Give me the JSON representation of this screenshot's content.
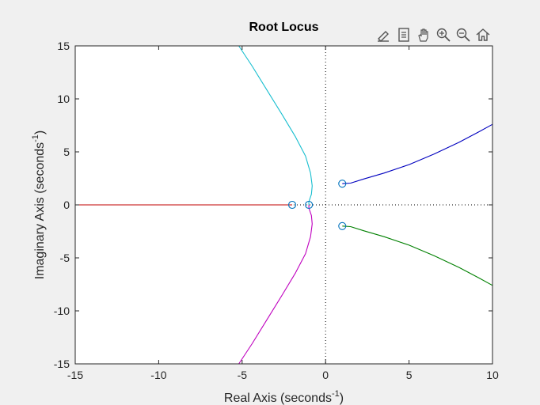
{
  "toolbar": {
    "icons": [
      "edit-brush-icon",
      "legend-insert-icon",
      "pan-hand-icon",
      "zoom-in-icon",
      "zoom-out-icon",
      "restore-view-home-icon"
    ]
  },
  "colors": {
    "background": "#f0f0f0",
    "axes": "#ffffff",
    "branch_red": "#c00000",
    "branch_cyan": "#17becf",
    "branch_magenta": "#bf00bf",
    "branch_blue": "#0000bf",
    "branch_green": "#008000",
    "zero_marker": "#0072bd"
  },
  "chart_data": {
    "type": "line",
    "title": "Root Locus",
    "xlabel": "Real Axis (seconds",
    "ylabel": "Imaginary Axis (seconds",
    "label_superscript": "-1",
    "label_suffix": ")",
    "xlim": [
      -15,
      10
    ],
    "ylim": [
      -15,
      15
    ],
    "xticks": [
      "-15",
      "-10",
      "-5",
      "0",
      "5",
      "10"
    ],
    "yticks": [
      "-15",
      "-10",
      "-5",
      "0",
      "5",
      "10",
      "15"
    ],
    "grid": false,
    "zero_lines": "dotted",
    "zeros": [
      {
        "x": -2,
        "y": 0
      },
      {
        "x": -1,
        "y": 0
      },
      {
        "x": 1,
        "y": 2
      },
      {
        "x": 1,
        "y": -2
      }
    ],
    "series": [
      {
        "color": "red",
        "points": [
          [
            -15,
            0
          ],
          [
            -2,
            0
          ]
        ]
      },
      {
        "color": "cyan",
        "points": [
          [
            -5.2,
            15
          ],
          [
            -4.4,
            13.1
          ],
          [
            -3.5,
            10.8
          ],
          [
            -2.6,
            8.5
          ],
          [
            -1.8,
            6.4
          ],
          [
            -1.2,
            4.6
          ],
          [
            -0.9,
            3.0
          ],
          [
            -0.8,
            1.8
          ],
          [
            -0.85,
            1.0
          ],
          [
            -1.0,
            0.3
          ],
          [
            -1,
            0
          ]
        ]
      },
      {
        "color": "magenta",
        "points": [
          [
            -1,
            0
          ],
          [
            -1.0,
            -0.3
          ],
          [
            -0.85,
            -1.0
          ],
          [
            -0.8,
            -1.8
          ],
          [
            -0.9,
            -3.0
          ],
          [
            -1.2,
            -4.6
          ],
          [
            -1.8,
            -6.4
          ],
          [
            -2.6,
            -8.5
          ],
          [
            -3.5,
            -10.8
          ],
          [
            -4.4,
            -13.1
          ],
          [
            -5.2,
            -15
          ]
        ]
      },
      {
        "color": "blue",
        "points": [
          [
            1,
            2
          ],
          [
            1.5,
            2.05
          ],
          [
            2.3,
            2.45
          ],
          [
            3.5,
            3.0
          ],
          [
            5.0,
            3.8
          ],
          [
            6.5,
            4.8
          ],
          [
            8.0,
            5.9
          ],
          [
            9.2,
            6.9
          ],
          [
            10,
            7.6
          ]
        ]
      },
      {
        "color": "green",
        "points": [
          [
            1,
            -2
          ],
          [
            1.5,
            -2.05
          ],
          [
            2.3,
            -2.45
          ],
          [
            3.5,
            -3.0
          ],
          [
            5.0,
            -3.8
          ],
          [
            6.5,
            -4.8
          ],
          [
            8.0,
            -5.9
          ],
          [
            9.2,
            -6.9
          ],
          [
            10,
            -7.6
          ]
        ]
      }
    ]
  }
}
